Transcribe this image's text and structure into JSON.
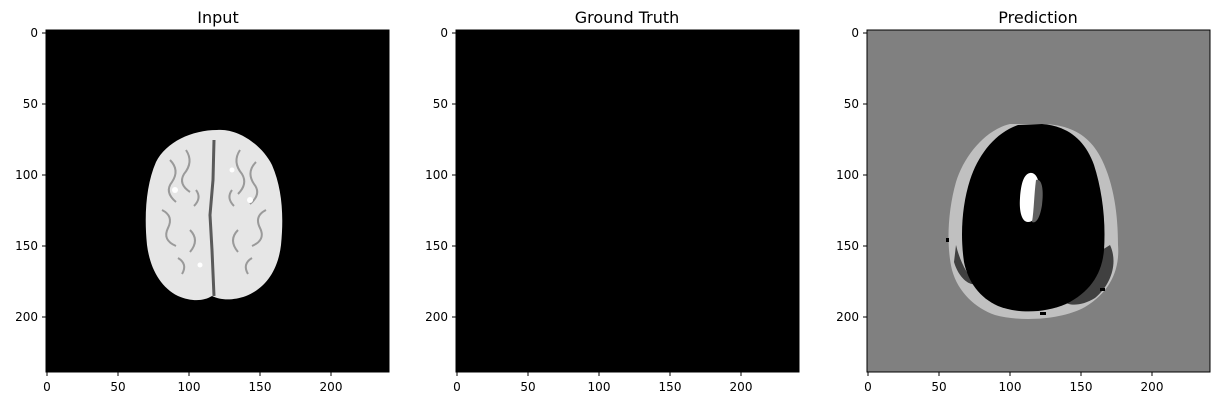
{
  "figure": {
    "panels": [
      {
        "title": "Input",
        "image": "brain MRI axial slice, grayscale",
        "x_ticks": [
          "0",
          "50",
          "100",
          "150",
          "200"
        ],
        "y_ticks": [
          "0",
          "50",
          "100",
          "150",
          "200"
        ]
      },
      {
        "title": "Ground Truth",
        "image": "all black mask",
        "x_ticks": [
          "0",
          "50",
          "100",
          "150",
          "200"
        ],
        "y_ticks": [
          "0",
          "50",
          "100",
          "150",
          "200"
        ]
      },
      {
        "title": "Prediction",
        "image": "gray segmentation map",
        "x_ticks": [
          "0",
          "50",
          "100",
          "150",
          "200"
        ],
        "y_ticks": [
          "0",
          "50",
          "100",
          "150",
          "200"
        ]
      }
    ],
    "axis_range": [
      0,
      240
    ],
    "colors": {
      "black": "#000000",
      "white": "#ffffff",
      "background_gray": "#808080",
      "light_gray": "#c0c0c0",
      "dark_gray": "#404040",
      "brain_light": "#e8e8e8"
    }
  }
}
